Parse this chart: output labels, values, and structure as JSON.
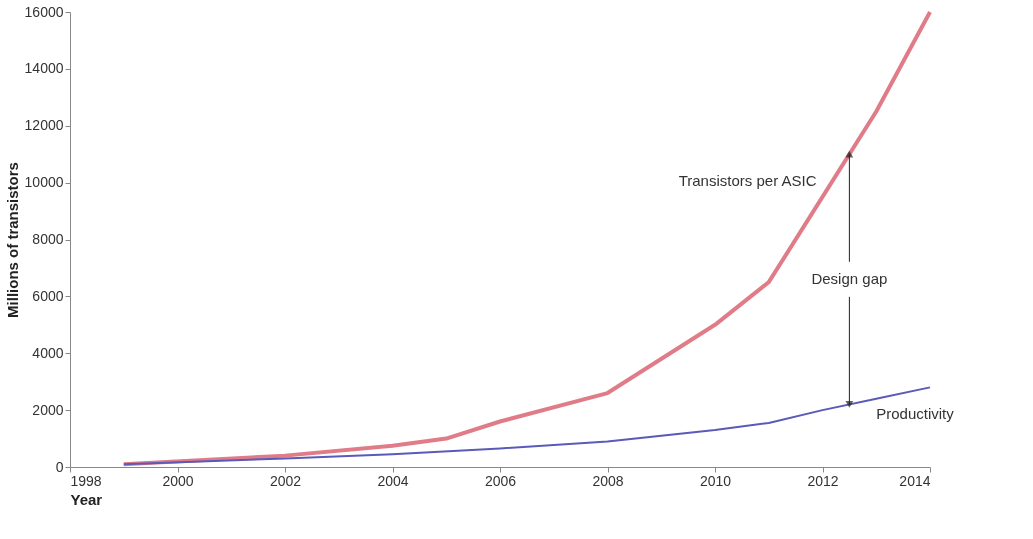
{
  "chart_data": {
    "type": "line",
    "xlabel": "Year",
    "ylabel": "Millions of transistors",
    "xlim": [
      1998,
      2014
    ],
    "xticks": [
      1998,
      2000,
      2002,
      2004,
      2006,
      2008,
      2010,
      2012,
      2014
    ],
    "ylim": [
      0,
      16000
    ],
    "yticks": [
      0,
      2000,
      4000,
      6000,
      8000,
      10000,
      12000,
      14000,
      16000
    ],
    "grid": false,
    "legend": false,
    "line_style": "solid",
    "marker": "none",
    "series": [
      {
        "name": "Transistors per ASIC",
        "color": "#e07c88",
        "x": [
          1999,
          2002,
          2004,
          2005,
          2006,
          2008,
          2010,
          2011,
          2012,
          2013,
          2014
        ],
        "values": [
          100,
          400,
          750,
          1000,
          1600,
          2600,
          5000,
          6500,
          9500,
          12500,
          16000
        ]
      },
      {
        "name": "Productivity",
        "color": "#5a5ab8",
        "x": [
          1999,
          2002,
          2004,
          2006,
          2008,
          2010,
          2011,
          2012,
          2013,
          2014
        ],
        "values": [
          100,
          300,
          450,
          650,
          900,
          1300,
          1550,
          2000,
          2400,
          2800
        ]
      }
    ],
    "annotations": [
      {
        "text": "Design gap",
        "x": 2012.5,
        "y": 11000
      }
    ]
  }
}
